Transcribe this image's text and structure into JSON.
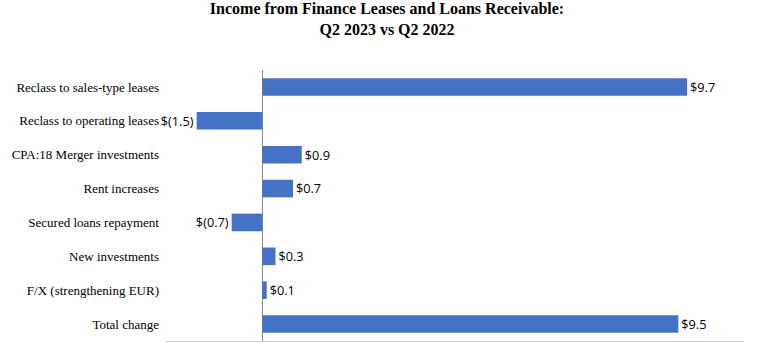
{
  "chart_data": {
    "type": "bar",
    "orientation": "horizontal",
    "title": "Income from Finance Leases and Loans Receivable:\nQ2 2023 vs Q2 2022",
    "categories": [
      "Total change",
      "F/X (strengthening EUR)",
      "New investments",
      "Secured loans repayment",
      "Rent increases",
      "CPA:18 Merger investments",
      "Reclass to operating leases",
      "Reclass to sales-type leases"
    ],
    "values": [
      9.5,
      0.1,
      0.3,
      -0.7,
      0.7,
      0.9,
      -1.5,
      9.7
    ],
    "value_labels": [
      "$9.5",
      "$0.1",
      "$0.3",
      "$(0.7)",
      "$0.7",
      "$0.9",
      "$(1.5)",
      "$9.7"
    ],
    "data_labels": true,
    "color": "#4472C4",
    "xlim": [
      -2.2,
      11.0
    ],
    "grid": false,
    "tick_labels": "y"
  }
}
